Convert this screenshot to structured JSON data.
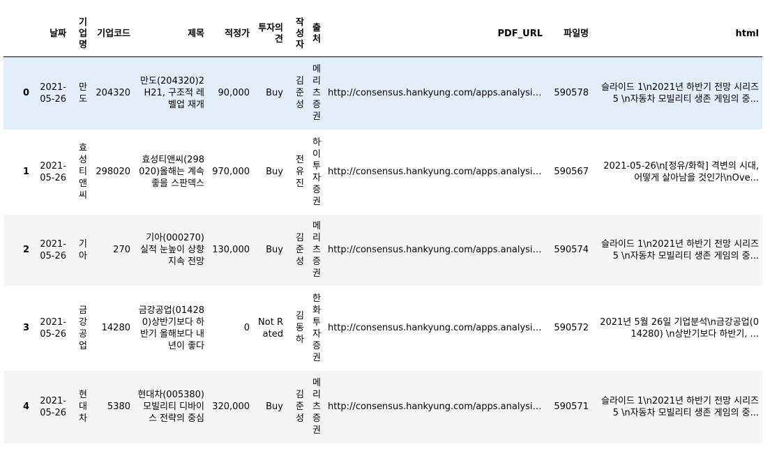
{
  "table": {
    "columns": [
      "",
      "날짜",
      "기업명",
      "기업코드",
      "제목",
      "적정가",
      "투자의견",
      "작성자",
      "출처",
      "PDF_URL",
      "파일명",
      "html"
    ],
    "rows": [
      {
        "index": "0",
        "date": "2021-05-26",
        "company": "만도",
        "code": "204320",
        "title": "만도(204320)2H21, 구조적 레벨업 재개",
        "target_price": "90,000",
        "opinion": "Buy",
        "author": "김준성",
        "source": "메리츠증권",
        "pdf_url": "http://consensus.hankyung.com/apps.analysis/an...",
        "file": "590578",
        "html": "슬라이드 1\\n2021년 하반기 전망 시리즈 5 \\n자동차 모빌리티 생존 게임의 중..."
      },
      {
        "index": "1",
        "date": "2021-05-26",
        "company": "효성티앤씨",
        "code": "298020",
        "title": "효성티앤씨(298020)올해는 계속 좋을 스판덱스",
        "target_price": "970,000",
        "opinion": "Buy",
        "author": "전유진",
        "source": "하이투자증권",
        "pdf_url": "http://consensus.hankyung.com/apps.analysis/an...",
        "file": "590567",
        "html": "2021-05-26\\n[정유/화학] 격변의 시대, 어떻게 살아남을 것인가\\nOve..."
      },
      {
        "index": "2",
        "date": "2021-05-26",
        "company": "기아",
        "code": "270",
        "title": "기아(000270) 실적 눈높이 상향 지속 전망",
        "target_price": "130,000",
        "opinion": "Buy",
        "author": "김준성",
        "source": "메리츠증권",
        "pdf_url": "http://consensus.hankyung.com/apps.analysis/an...",
        "file": "590574",
        "html": "슬라이드 1\\n2021년 하반기 전망 시리즈 5 \\n자동차 모빌리티 생존 게임의 중..."
      },
      {
        "index": "3",
        "date": "2021-05-26",
        "company": "금강공업",
        "code": "14280",
        "title": "금강공업(014280)상반기보다 하반기 올해보다 내년이 좋다",
        "target_price": "0",
        "opinion": "Not Rated",
        "author": "김동하",
        "source": "한화투자증권",
        "pdf_url": "http://consensus.hankyung.com/apps.analysis/an...",
        "file": "590572",
        "html": "2021년 5월 26일 기업분석\\n금강공업(014280) \\n상반기보다 하반기, ..."
      },
      {
        "index": "4",
        "date": "2021-05-26",
        "company": "현대차",
        "code": "5380",
        "title": "현대차(005380)모빌리티 디바이스 전략의 중심",
        "target_price": "320,000",
        "opinion": "Buy",
        "author": "김준성",
        "source": "메리츠증권",
        "pdf_url": "http://consensus.hankyung.com/apps.analysis/an...",
        "file": "590571",
        "html": "슬라이드 1\\n2021년 하반기 전망 시리즈 5 \\n자동차 모빌리티 생존 게임의 중..."
      }
    ]
  },
  "colors": {
    "highlight_row": "#e2eef9",
    "striped_row": "#f5f5f5",
    "header_border": "#000000"
  }
}
